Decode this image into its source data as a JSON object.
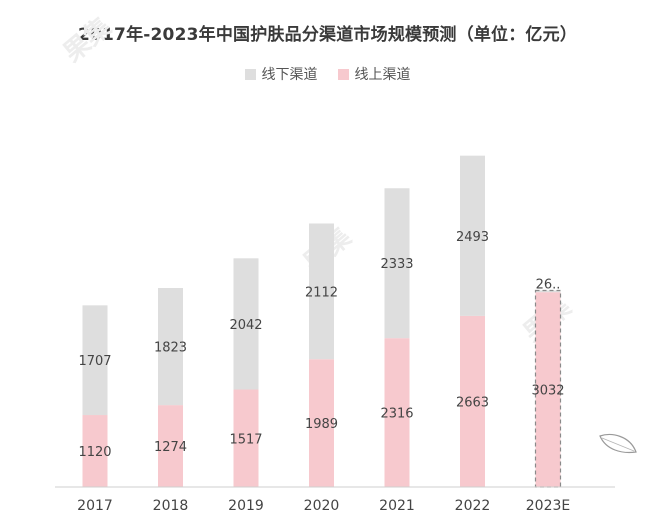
{
  "chart_data": {
    "type": "bar",
    "stacked": true,
    "title": "2017年-2023年中国护肤品分渠道市场规模预测（单位：亿元）",
    "categories": [
      "2017",
      "2018",
      "2019",
      "2020",
      "2021",
      "2022",
      "2023E"
    ],
    "series": [
      {
        "name": "线上渠道",
        "color": "#f7c9ce",
        "values": [
          1120,
          1274,
          1517,
          1989,
          2316,
          2663,
          3032
        ]
      },
      {
        "name": "线下渠道",
        "color": "#dedede",
        "values": [
          1707,
          1823,
          2042,
          2112,
          2333,
          2493,
          26
        ]
      }
    ],
    "data_labels": {
      "线上渠道": [
        "1120",
        "1274",
        "1517",
        "1989",
        "2316",
        "2663",
        "3032"
      ],
      "线下渠道": [
        "1707",
        "1823",
        "2042",
        "2112",
        "2333",
        "2493",
        "26.."
      ]
    },
    "forecast_category": "2023E",
    "legend_order": [
      "线下渠道",
      "线上渠道"
    ],
    "legend_position": "top-center",
    "ylim": [
      0,
      5400
    ],
    "grid": false,
    "xlabel": "",
    "ylabel": ""
  },
  "watermark": "果集",
  "colors": {
    "text": "#444444",
    "axis": "#cfcfcf",
    "forecast_outline": "#8a8a8a"
  }
}
